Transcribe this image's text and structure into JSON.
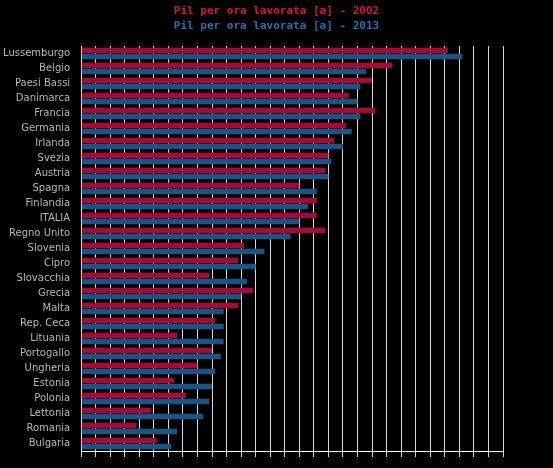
{
  "chart_data": {
    "type": "bar",
    "orientation": "horizontal",
    "categories": [
      "Lussemburgo",
      "Belgio",
      "Paesi Bassi",
      "Danimarca",
      "Francia",
      "Germania",
      "Irlanda",
      "Svezia",
      "Austria",
      "Spagna",
      "Finlandia",
      "ITALIA",
      "Regno Unito",
      "Slovenia",
      "Cipro",
      "Slovacchia",
      "Grecia",
      "Malta",
      "Rep. Ceca",
      "Lituania",
      "Portogallo",
      "Ungheria",
      "Estonia",
      "Polonia",
      "Lettonia",
      "Romania",
      "Bulgaria"
    ],
    "series": [
      {
        "name": "Pil per ora lavorata [a] - 2002",
        "color": "#a00d36",
        "values": [
          126,
          107,
          100,
          92,
          101,
          91,
          87,
          85,
          84,
          75,
          81,
          81,
          84,
          56,
          54,
          44,
          59,
          54,
          46,
          33,
          45,
          40,
          32,
          36,
          24,
          19,
          26
        ]
      },
      {
        "name": "Pil per ora lavorata [a] - 2013",
        "color": "#1d5384",
        "values": [
          131,
          98,
          96,
          95,
          96,
          93,
          90,
          86,
          85,
          81,
          78,
          75,
          72,
          63,
          60,
          57,
          55,
          49,
          49,
          49,
          48,
          46,
          45,
          44,
          42,
          33,
          31
        ]
      }
    ],
    "xlim": [
      0,
      145
    ],
    "xticks": [
      0,
      5,
      10,
      15,
      20,
      25,
      30,
      35,
      40,
      45,
      50,
      55,
      60,
      65,
      70,
      75,
      80,
      85,
      90,
      95,
      100,
      105,
      110,
      115,
      120,
      125,
      130,
      135,
      140,
      145
    ],
    "grid": true,
    "legend": "top",
    "tick_labels": "y"
  }
}
